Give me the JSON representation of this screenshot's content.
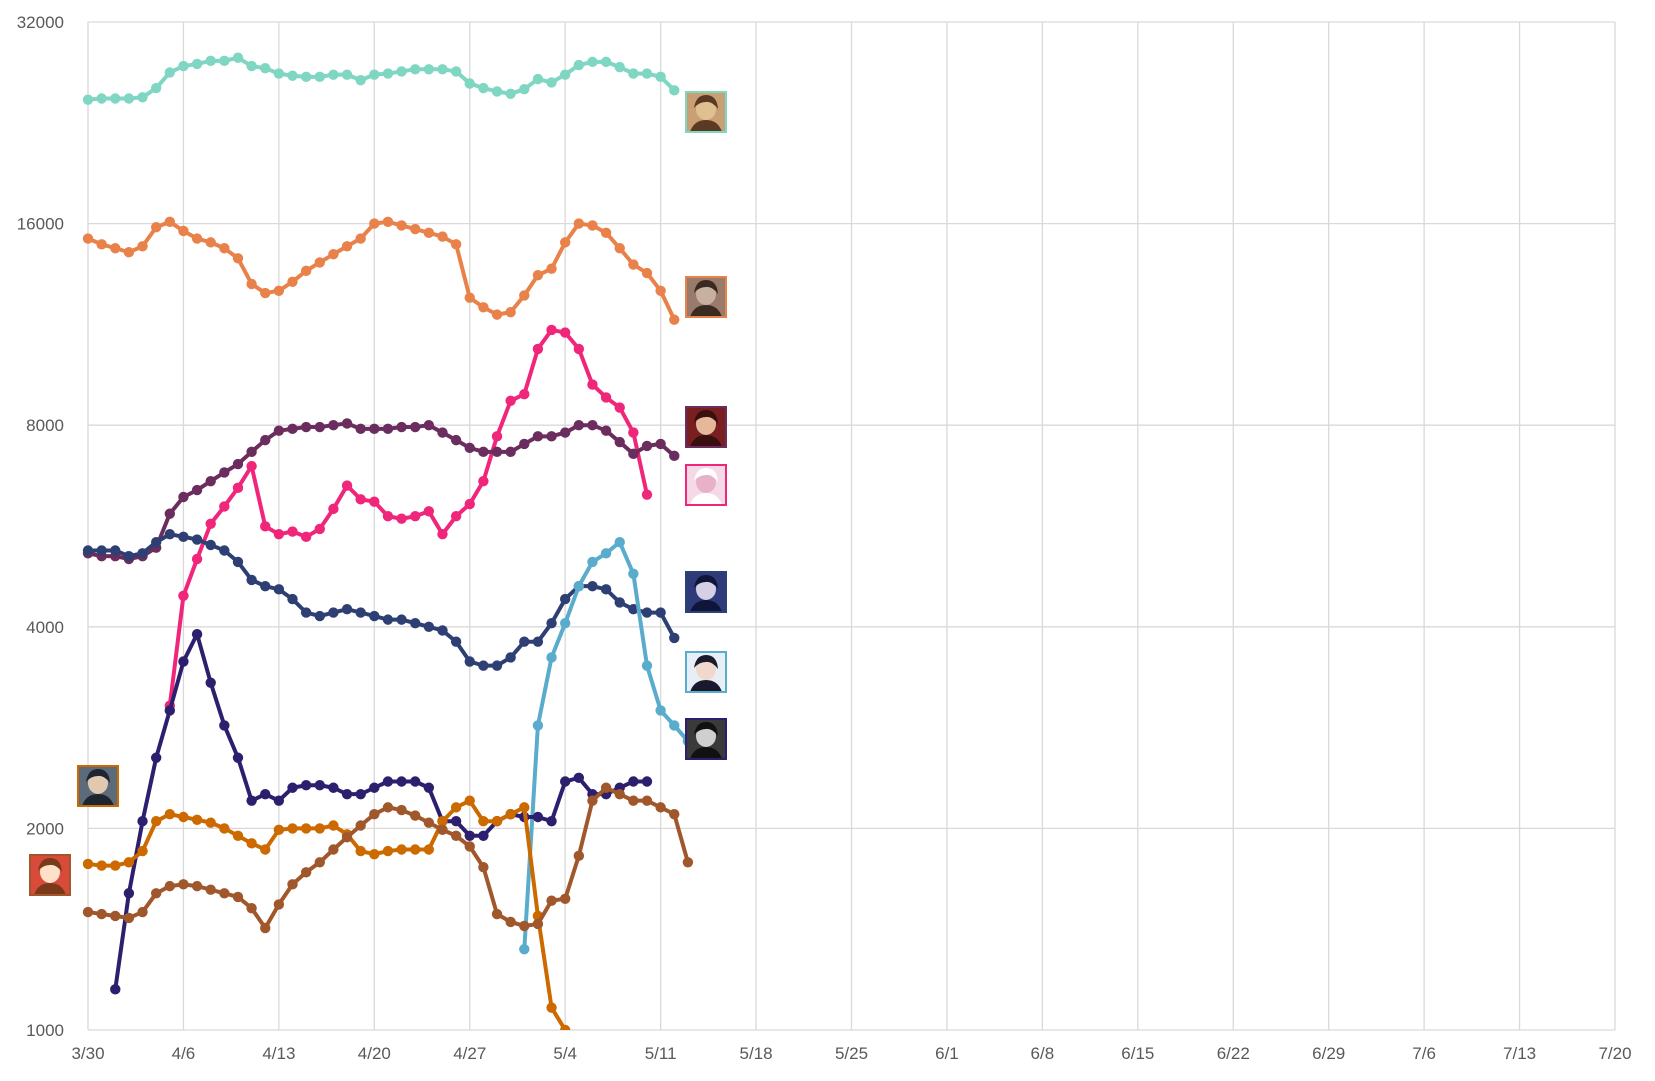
{
  "chart_data": {
    "type": "line",
    "title": "",
    "xlabel": "",
    "ylabel": "",
    "y_scale": "log2",
    "ylim": [
      1000,
      32000
    ],
    "y_ticks": [
      1000,
      2000,
      4000,
      8000,
      16000,
      32000
    ],
    "y_tick_labels": [
      "1000",
      "2000",
      "4000",
      "8000",
      "16000",
      "32000"
    ],
    "x_start": "3/30",
    "x_end": "7/20",
    "x_tick_labels": [
      "3/30",
      "4/6",
      "4/13",
      "4/20",
      "4/27",
      "5/4",
      "5/11",
      "5/18",
      "5/25",
      "6/1",
      "6/8",
      "6/15",
      "6/22",
      "6/29",
      "7/6",
      "7/13",
      "7/20"
    ],
    "grid": true,
    "legend": "avatar icons beside the right end of each line",
    "series": [
      {
        "color": "#7fd6c3",
        "avatar": "general-portrait-icon",
        "start": "3/30",
        "values": [
          24500,
          24600,
          24600,
          24600,
          24700,
          25500,
          26900,
          27500,
          27700,
          28000,
          28000,
          28300,
          27500,
          27300,
          26800,
          26600,
          26500,
          26500,
          26700,
          26700,
          26200,
          26700,
          26800,
          27000,
          27200,
          27200,
          27200,
          27000,
          25900,
          25500,
          25200,
          25000,
          25400,
          26300,
          26000,
          26700,
          27600,
          27900,
          27900,
          27400,
          26800,
          26800,
          26500,
          25300
        ]
      },
      {
        "color": "#e8824a",
        "avatar": "swordsman-portrait-icon",
        "start": "3/30",
        "values": [
          15200,
          14900,
          14700,
          14500,
          14800,
          15800,
          16100,
          15600,
          15200,
          15000,
          14700,
          14200,
          13000,
          12600,
          12700,
          13100,
          13600,
          14000,
          14400,
          14800,
          15200,
          16000,
          16100,
          15900,
          15700,
          15500,
          15300,
          14900,
          12400,
          12000,
          11700,
          11800,
          12500,
          13400,
          13700,
          15000,
          16000,
          15900,
          15500,
          14700,
          13900,
          13500,
          12700,
          11500
        ]
      },
      {
        "color": "#f0267a",
        "avatar": "white-hair-portrait-icon",
        "start": "4/5",
        "values": [
          3050,
          4450,
          5050,
          5700,
          6050,
          6450,
          6950,
          5650,
          5500,
          5550,
          5450,
          5600,
          6000,
          6500,
          6200,
          6150,
          5850,
          5800,
          5850,
          5950,
          5500,
          5850,
          6100,
          6600,
          7700,
          8700,
          8900,
          10400,
          11100,
          11000,
          10400,
          9200,
          8800,
          8500,
          7800,
          6300
        ]
      },
      {
        "color": "#6b2d5e",
        "avatar": "red-hair-portrait-icon",
        "start": "3/30",
        "values": [
          5150,
          5100,
          5100,
          5050,
          5100,
          5250,
          5900,
          6250,
          6400,
          6600,
          6800,
          7000,
          7300,
          7600,
          7850,
          7900,
          7950,
          7950,
          8000,
          8050,
          7900,
          7900,
          7900,
          7950,
          7950,
          8000,
          7800,
          7600,
          7400,
          7300,
          7300,
          7300,
          7500,
          7700,
          7700,
          7800,
          8000,
          8000,
          7850,
          7550,
          7250,
          7450,
          7500,
          7200
        ]
      },
      {
        "color": "#2e3f73",
        "avatar": "blue-hair-portrait-icon",
        "start": "3/30",
        "values": [
          5200,
          5200,
          5200,
          5100,
          5150,
          5350,
          5500,
          5450,
          5400,
          5300,
          5200,
          5000,
          4700,
          4600,
          4550,
          4400,
          4200,
          4150,
          4200,
          4250,
          4200,
          4150,
          4100,
          4100,
          4050,
          4000,
          3950,
          3800,
          3550,
          3500,
          3500,
          3600,
          3800,
          3800,
          4050,
          4400,
          4600,
          4600,
          4550,
          4350,
          4250,
          4200,
          4200,
          3850
        ]
      },
      {
        "color": "#5aaccc",
        "avatar": "dark-hair-girl-portrait-icon",
        "start": "5/1",
        "values": [
          1320,
          2850,
          3600,
          4050,
          4600,
          5000,
          5150,
          5350,
          4800,
          3500,
          3000,
          2850,
          2700
        ]
      },
      {
        "color": "#2e1f6e",
        "avatar": "monochrome-portrait-icon",
        "start": "4/1",
        "values": [
          1150,
          1600,
          2050,
          2550,
          3000,
          3550,
          3900,
          3300,
          2850,
          2550,
          2200,
          2250,
          2200,
          2300,
          2320,
          2320,
          2300,
          2250,
          2250,
          2300,
          2350,
          2350,
          2350,
          2300,
          2050,
          2050,
          1950,
          1950,
          2050,
          2100,
          2080,
          2080,
          2050,
          2350,
          2380,
          2250,
          2250,
          2300,
          2350,
          2350
        ]
      },
      {
        "color": "#cc6a00",
        "avatar": "hooded-warrior-portrait-icon",
        "start": "3/30",
        "values": [
          1770,
          1760,
          1760,
          1780,
          1850,
          2050,
          2100,
          2080,
          2060,
          2040,
          2000,
          1950,
          1900,
          1860,
          1990,
          2000,
          2000,
          2000,
          2020,
          1960,
          1850,
          1830,
          1850,
          1860,
          1860,
          1860,
          2050,
          2150,
          2200,
          2050,
          2050,
          2100,
          2150,
          1480,
          1080,
          1000
        ]
      },
      {
        "color": "#a0572b",
        "avatar": "chibi-girl-portrait-icon",
        "start": "3/30",
        "values": [
          1500,
          1490,
          1480,
          1470,
          1500,
          1600,
          1640,
          1650,
          1640,
          1620,
          1600,
          1580,
          1520,
          1420,
          1540,
          1650,
          1720,
          1780,
          1860,
          1940,
          2020,
          2100,
          2150,
          2130,
          2090,
          2040,
          1990,
          1950,
          1880,
          1750,
          1490,
          1450,
          1430,
          1440,
          1560,
          1570,
          1820,
          2200,
          2300,
          2250,
          2200,
          2200,
          2150,
          2100,
          1780
        ]
      }
    ]
  }
}
